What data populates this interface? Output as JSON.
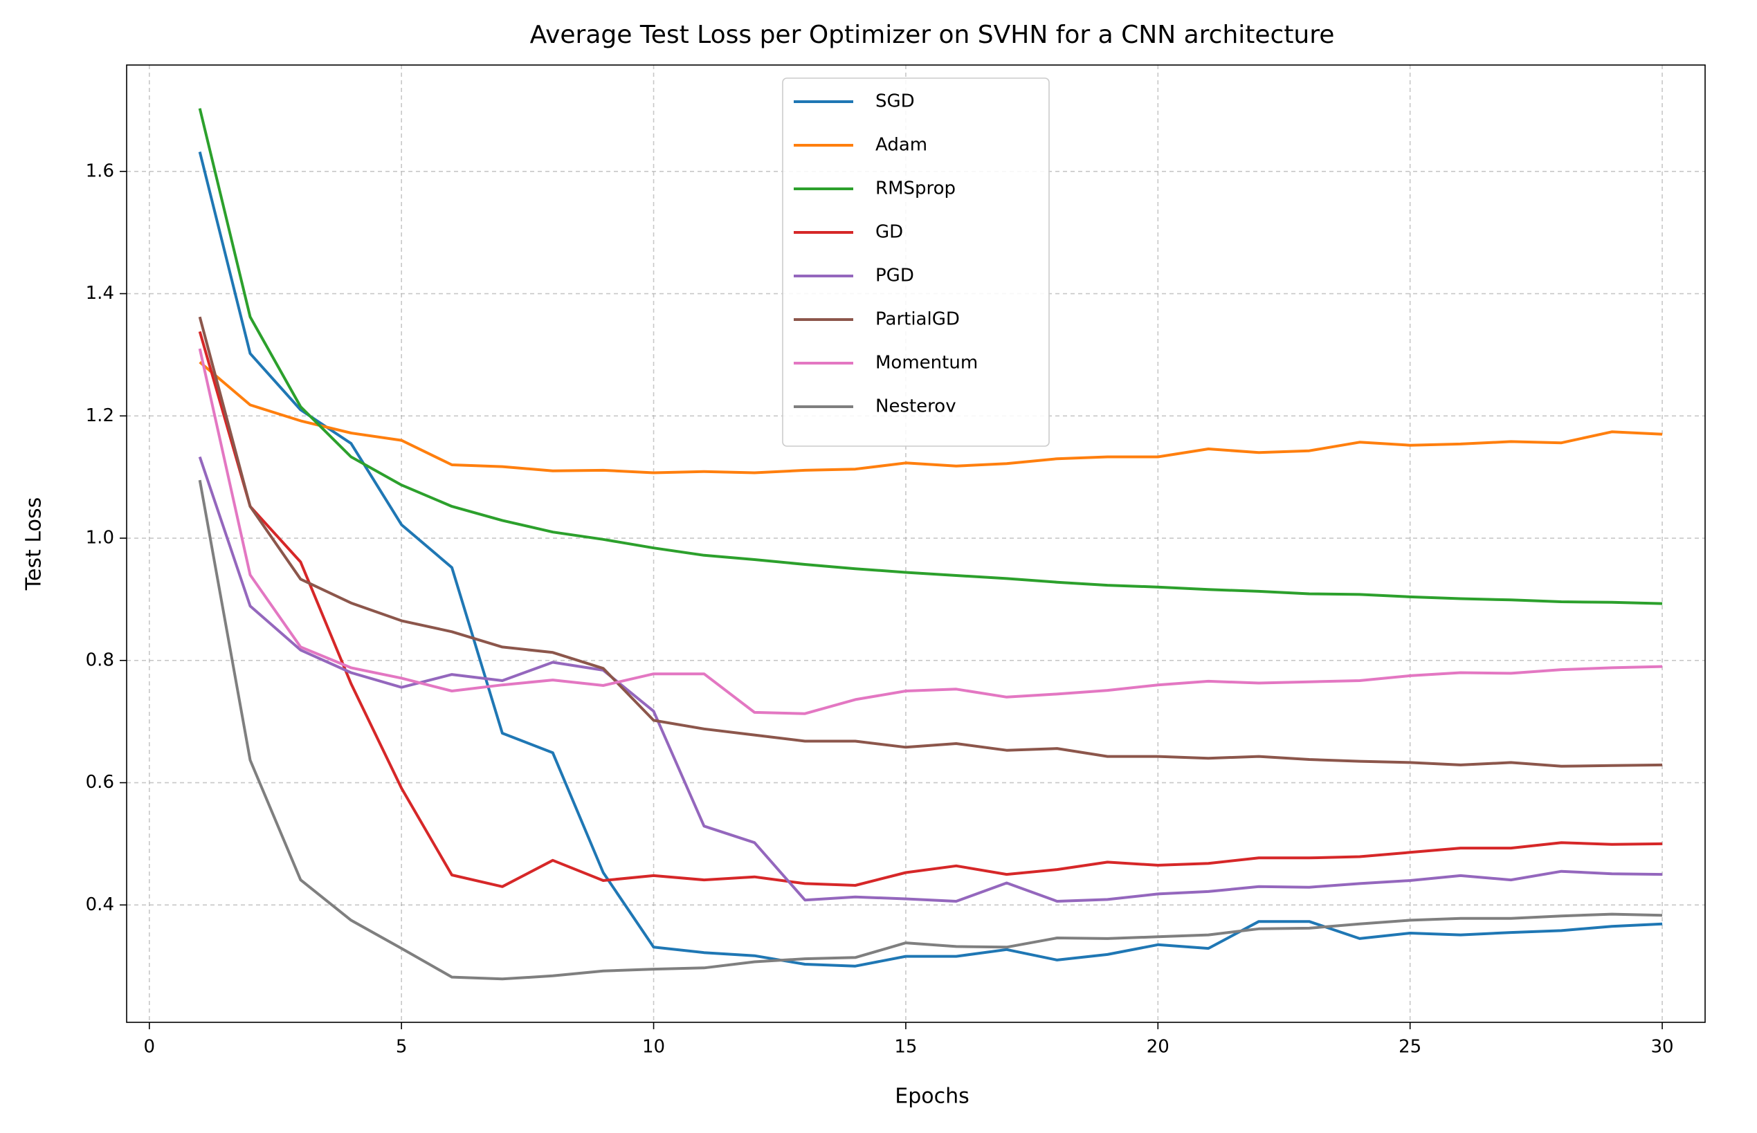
{
  "chart_data": {
    "type": "line",
    "title": "Average Test Loss per Optimizer on SVHN for a CNN architecture",
    "xlabel": "Epochs",
    "ylabel": "Test Loss",
    "x": [
      1,
      2,
      3,
      4,
      5,
      6,
      7,
      8,
      9,
      10,
      11,
      12,
      13,
      14,
      15,
      16,
      17,
      18,
      19,
      20,
      21,
      22,
      23,
      24,
      25,
      26,
      27,
      28,
      29,
      30
    ],
    "xlim": [
      -0.45,
      30.85
    ],
    "ylim": [
      0.208,
      1.774
    ],
    "xticks": [
      0,
      5,
      10,
      15,
      20,
      25,
      30
    ],
    "yticks": [
      0.4,
      0.6,
      0.8,
      {
        "value": 1,
        "label": "1.0"
      },
      1.2,
      1.4,
      1.6
    ],
    "grid": true,
    "legend": "upper center",
    "series": [
      {
        "name": "SGD",
        "color": "#1f77b4",
        "values": [
          1.632,
          1.302,
          1.21,
          1.155,
          1.022,
          0.952,
          0.681,
          0.649,
          0.453,
          0.331,
          0.322,
          0.317,
          0.303,
          0.3,
          0.316,
          0.316,
          0.327,
          0.31,
          0.319,
          0.335,
          0.329,
          0.373,
          0.373,
          0.345,
          0.354,
          0.351,
          0.355,
          0.358,
          0.365,
          0.369
        ]
      },
      {
        "name": "Adam",
        "color": "#ff7f0e",
        "values": [
          1.288,
          1.218,
          1.192,
          1.172,
          1.16,
          1.12,
          1.117,
          1.11,
          1.111,
          1.107,
          1.109,
          1.107,
          1.111,
          1.113,
          1.123,
          1.118,
          1.122,
          1.13,
          1.133,
          1.133,
          1.146,
          1.14,
          1.143,
          1.157,
          1.152,
          1.154,
          1.158,
          1.156,
          1.174,
          1.17
        ]
      },
      {
        "name": "RMSprop",
        "color": "#2ca02c",
        "values": [
          1.703,
          1.362,
          1.215,
          1.133,
          1.087,
          1.052,
          1.029,
          1.01,
          0.998,
          0.984,
          0.972,
          0.965,
          0.957,
          0.95,
          0.944,
          0.939,
          0.934,
          0.928,
          0.923,
          0.92,
          0.916,
          0.913,
          0.909,
          0.908,
          0.904,
          0.901,
          0.899,
          0.896,
          0.895,
          0.893
        ]
      },
      {
        "name": "GD",
        "color": "#d62728",
        "values": [
          1.338,
          1.052,
          0.961,
          0.762,
          0.591,
          0.449,
          0.43,
          0.473,
          0.44,
          0.448,
          0.441,
          0.446,
          0.435,
          0.432,
          0.453,
          0.464,
          0.45,
          0.458,
          0.47,
          0.465,
          0.468,
          0.477,
          0.477,
          0.479,
          0.486,
          0.493,
          0.493,
          0.502,
          0.499,
          0.5
        ]
      },
      {
        "name": "PGD",
        "color": "#9467bd",
        "values": [
          1.133,
          0.889,
          0.817,
          0.78,
          0.756,
          0.777,
          0.767,
          0.797,
          0.784,
          0.717,
          0.529,
          0.502,
          0.408,
          0.413,
          0.41,
          0.406,
          0.436,
          0.406,
          0.409,
          0.418,
          0.422,
          0.43,
          0.429,
          0.435,
          0.44,
          0.448,
          0.441,
          0.455,
          0.451,
          0.45
        ]
      },
      {
        "name": "PartialGD",
        "color": "#8c564b",
        "values": [
          1.362,
          1.052,
          0.933,
          0.894,
          0.865,
          0.847,
          0.822,
          0.813,
          0.787,
          0.702,
          0.688,
          0.678,
          0.668,
          0.668,
          0.658,
          0.664,
          0.653,
          0.656,
          0.643,
          0.643,
          0.64,
          0.643,
          0.638,
          0.635,
          0.633,
          0.629,
          0.633,
          0.627,
          0.628,
          0.629
        ]
      },
      {
        "name": "Momentum",
        "color": "#e377c2",
        "values": [
          1.31,
          0.94,
          0.822,
          0.788,
          0.771,
          0.75,
          0.76,
          0.768,
          0.759,
          0.778,
          0.778,
          0.715,
          0.713,
          0.736,
          0.75,
          0.753,
          0.74,
          0.745,
          0.751,
          0.76,
          0.766,
          0.763,
          0.765,
          0.767,
          0.775,
          0.78,
          0.779,
          0.785,
          0.788,
          0.79
        ]
      },
      {
        "name": "Nesterov",
        "color": "#7f7f7f",
        "values": [
          1.095,
          0.637,
          0.441,
          0.375,
          0.329,
          0.282,
          0.279,
          0.284,
          0.292,
          0.295,
          0.297,
          0.307,
          0.312,
          0.314,
          0.338,
          0.332,
          0.331,
          0.346,
          0.345,
          0.348,
          0.351,
          0.361,
          0.362,
          0.369,
          0.375,
          0.378,
          0.378,
          0.382,
          0.385,
          0.383
        ]
      }
    ]
  }
}
